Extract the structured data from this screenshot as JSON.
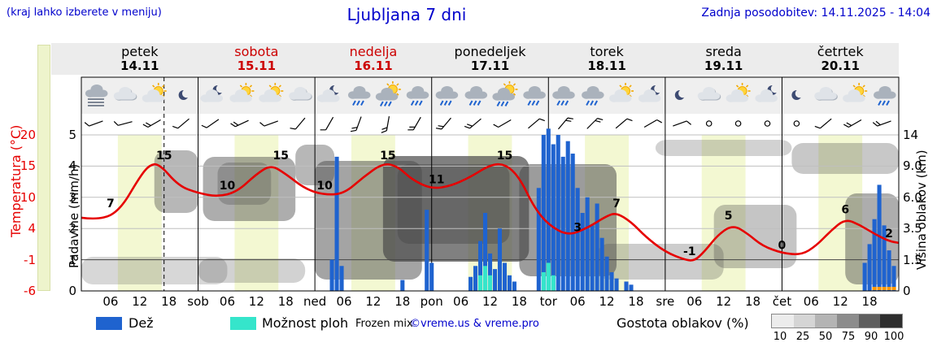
{
  "header": {
    "hint": "(kraj lahko izberete v meniju)",
    "title": "Ljubljana 7 dni",
    "updated": "Zadnja posodobitev: 14.11.2025 - 14:04"
  },
  "axes": {
    "temp_label": "Temperatura (°C)",
    "precip_label": "Padavine (mm/h)",
    "cloud_label": "Višina oblakov (km)",
    "temp_ticks": [
      "20",
      "15",
      "10",
      "4",
      "-1",
      "-6"
    ],
    "precip_ticks": [
      "5",
      "4",
      "3",
      "2",
      "1",
      "0"
    ],
    "cloud_ticks": [
      "14",
      "9.0",
      "6.0",
      "3.5",
      "1.5",
      "0"
    ]
  },
  "days": [
    {
      "name": "petek",
      "date": "14.11",
      "color": "#000000"
    },
    {
      "name": "sobota",
      "date": "15.11",
      "color": "#cc0000"
    },
    {
      "name": "nedelja",
      "date": "16.11",
      "color": "#cc0000"
    },
    {
      "name": "ponedeljek",
      "date": "17.11",
      "color": "#000000"
    },
    {
      "name": "torek",
      "date": "18.11",
      "color": "#000000"
    },
    {
      "name": "sreda",
      "date": "19.11",
      "color": "#000000"
    },
    {
      "name": "četrtek",
      "date": "20.11",
      "color": "#000000"
    }
  ],
  "xticks": [
    {
      "h": 6,
      "t": "06"
    },
    {
      "h": 12,
      "t": "12"
    },
    {
      "h": 18,
      "t": "18"
    },
    {
      "h": 24,
      "t": "sob"
    },
    {
      "h": 30,
      "t": "06"
    },
    {
      "h": 36,
      "t": "12"
    },
    {
      "h": 42,
      "t": "18"
    },
    {
      "h": 48,
      "t": "ned"
    },
    {
      "h": 54,
      "t": "06"
    },
    {
      "h": 60,
      "t": "12"
    },
    {
      "h": 66,
      "t": "18"
    },
    {
      "h": 72,
      "t": "pon"
    },
    {
      "h": 78,
      "t": "06"
    },
    {
      "h": 84,
      "t": "12"
    },
    {
      "h": 90,
      "t": "18"
    },
    {
      "h": 96,
      "t": "tor"
    },
    {
      "h": 102,
      "t": "06"
    },
    {
      "h": 108,
      "t": "12"
    },
    {
      "h": 114,
      "t": "18"
    },
    {
      "h": 120,
      "t": "sre"
    },
    {
      "h": 126,
      "t": "06"
    },
    {
      "h": 132,
      "t": "12"
    },
    {
      "h": 138,
      "t": "18"
    },
    {
      "h": 144,
      "t": "čet"
    },
    {
      "h": 150,
      "t": "06"
    },
    {
      "h": 156,
      "t": "12"
    },
    {
      "h": 162,
      "t": "18"
    }
  ],
  "legend": {
    "rain": "Dež",
    "showers": "Možnost ploh",
    "frozen": "Frozen mix",
    "credit": "©vreme.us & vreme.pro",
    "clouds": "Gostota oblakov (%)",
    "cloud_scale": [
      "10",
      "25",
      "50",
      "75",
      "90",
      "100"
    ],
    "scale_colors": [
      "#ececec",
      "#d5d5d5",
      "#b4b4b4",
      "#8c8c8c",
      "#5e5e5e",
      "#2e2e2e"
    ]
  },
  "chart_data": {
    "type": "meteogram",
    "hours_span": 168,
    "current_time_h": 17,
    "colors": {
      "temp": "#e60000",
      "rain": "#1f63cf",
      "showers": "#35e5cb",
      "frozen": "#ff9800",
      "daylight": "#f3f8d2",
      "cloud": "#4a4a4a",
      "blue_text": "#0000cc"
    },
    "temperature": [
      [
        0,
        6.2
      ],
      [
        4,
        5.8
      ],
      [
        8,
        7.5
      ],
      [
        12,
        13
      ],
      [
        14,
        15
      ],
      [
        16,
        15.2
      ],
      [
        20,
        11.5
      ],
      [
        24,
        10.3
      ],
      [
        28,
        9.7
      ],
      [
        32,
        10.5
      ],
      [
        36,
        13.5
      ],
      [
        39,
        15
      ],
      [
        42,
        13.5
      ],
      [
        46,
        11
      ],
      [
        50,
        10
      ],
      [
        54,
        10.2
      ],
      [
        58,
        13
      ],
      [
        62,
        15.3
      ],
      [
        65,
        14.8
      ],
      [
        68,
        12.5
      ],
      [
        72,
        11
      ],
      [
        76,
        11.5
      ],
      [
        80,
        13
      ],
      [
        84,
        15
      ],
      [
        87,
        15.2
      ],
      [
        90,
        13
      ],
      [
        93,
        8
      ],
      [
        96,
        5
      ],
      [
        100,
        3.2
      ],
      [
        104,
        4.5
      ],
      [
        108,
        6.5
      ],
      [
        110,
        7
      ],
      [
        113,
        5.5
      ],
      [
        116,
        3
      ],
      [
        120,
        0.5
      ],
      [
        124,
        -0.8
      ],
      [
        126,
        -1
      ],
      [
        128,
        0.5
      ],
      [
        131,
        3.5
      ],
      [
        134,
        5
      ],
      [
        137,
        3.5
      ],
      [
        140,
        1.5
      ],
      [
        144,
        0.3
      ],
      [
        148,
        0
      ],
      [
        151,
        1.5
      ],
      [
        154,
        4
      ],
      [
        157,
        6
      ],
      [
        160,
        5
      ],
      [
        163,
        3.5
      ],
      [
        166,
        2.3
      ],
      [
        168,
        2
      ]
    ],
    "temp_labels": [
      [
        6,
        7,
        "7"
      ],
      [
        17,
        15,
        "15"
      ],
      [
        30,
        10,
        "10"
      ],
      [
        41,
        15,
        "15"
      ],
      [
        50,
        10,
        "10"
      ],
      [
        63,
        15,
        "15"
      ],
      [
        73,
        11,
        "11"
      ],
      [
        87,
        15,
        "15"
      ],
      [
        102,
        3,
        "3"
      ],
      [
        110,
        7,
        "7"
      ],
      [
        125,
        -1,
        "-1"
      ],
      [
        133,
        5,
        "5"
      ],
      [
        144,
        0,
        "0"
      ],
      [
        157,
        6,
        "6"
      ],
      [
        166,
        2,
        "2"
      ]
    ],
    "rain": [
      [
        51.5,
        1.0
      ],
      [
        52.5,
        4.3
      ],
      [
        53.5,
        0.8
      ],
      [
        66,
        0.35
      ],
      [
        71,
        2.6
      ],
      [
        72,
        0.9
      ],
      [
        80,
        0.45
      ],
      [
        81,
        0.8
      ],
      [
        82,
        1.6
      ],
      [
        83,
        2.5
      ],
      [
        84,
        1.2
      ],
      [
        85,
        0.7
      ],
      [
        86,
        2.0
      ],
      [
        87,
        0.9
      ],
      [
        88,
        0.5
      ],
      [
        89,
        0.3
      ],
      [
        94,
        3.3
      ],
      [
        95,
        5.0
      ],
      [
        96,
        5.2
      ],
      [
        97,
        4.7
      ],
      [
        98,
        5.0
      ],
      [
        99,
        4.3
      ],
      [
        100,
        4.8
      ],
      [
        101,
        4.4
      ],
      [
        102,
        3.3
      ],
      [
        103,
        2.5
      ],
      [
        104,
        3.0
      ],
      [
        105,
        2.1
      ],
      [
        106,
        2.8
      ],
      [
        107,
        1.7
      ],
      [
        108,
        1.1
      ],
      [
        109,
        0.6
      ],
      [
        110,
        0.4
      ],
      [
        112,
        0.3
      ],
      [
        113,
        0.2
      ],
      [
        161,
        0.9
      ],
      [
        162,
        1.5
      ],
      [
        163,
        2.3
      ],
      [
        164,
        3.4
      ],
      [
        165,
        2.1
      ],
      [
        166,
        1.3
      ],
      [
        167,
        0.8
      ]
    ],
    "showers": [
      [
        82,
        0.5
      ],
      [
        83,
        0.8
      ],
      [
        84,
        0.5
      ],
      [
        95,
        0.6
      ],
      [
        96,
        0.9
      ],
      [
        97,
        0.5
      ]
    ],
    "frozen_hours": [
      163,
      164,
      165,
      166,
      167
    ],
    "daylight": [
      [
        7.5,
        16.5
      ],
      [
        31.5,
        40.5
      ],
      [
        55.5,
        64.5
      ],
      [
        79.5,
        88.5
      ],
      [
        103.5,
        112.5
      ],
      [
        127.5,
        136.5
      ],
      [
        151.5,
        160.5
      ]
    ],
    "clouds": [
      [
        0,
        30,
        316,
        350,
        0.22
      ],
      [
        15,
        24,
        185,
        262,
        0.4
      ],
      [
        25,
        44,
        193,
        272,
        0.45
      ],
      [
        28,
        39,
        200,
        252,
        0.3
      ],
      [
        24,
        46,
        318,
        348,
        0.25
      ],
      [
        44,
        52,
        178,
        228,
        0.4
      ],
      [
        48,
        70,
        198,
        344,
        0.5
      ],
      [
        62,
        92,
        192,
        322,
        0.7
      ],
      [
        65,
        88,
        202,
        300,
        0.45
      ],
      [
        90,
        110,
        202,
        340,
        0.55
      ],
      [
        106,
        132,
        300,
        344,
        0.28
      ],
      [
        118,
        146,
        172,
        192,
        0.25
      ],
      [
        130,
        147,
        252,
        330,
        0.32
      ],
      [
        146,
        168,
        176,
        214,
        0.3
      ],
      [
        157,
        168,
        238,
        350,
        0.45
      ]
    ],
    "icons": [
      "fog",
      "cloud",
      "cloud-sun",
      "moon",
      "cloud-moon",
      "cloud-sun",
      "cloud-sun",
      "cloud",
      "cloud-moon",
      "rain",
      "rain-sun",
      "rain",
      "rain",
      "rain",
      "rain-sun",
      "rain",
      "rain",
      "rain",
      "cloud-sun",
      "cloud-moon",
      "moon",
      "cloud",
      "cloud-sun",
      "cloud-moon",
      "moon",
      "cloud",
      "cloud-sun",
      "rain"
    ],
    "wind": [
      [
        250,
        1
      ],
      [
        255,
        1
      ],
      [
        240,
        2
      ],
      [
        230,
        1
      ],
      [
        235,
        1
      ],
      [
        245,
        2
      ],
      [
        250,
        1
      ],
      [
        220,
        1
      ],
      [
        210,
        1
      ],
      [
        200,
        2
      ],
      [
        190,
        2
      ],
      [
        210,
        2
      ],
      [
        220,
        2
      ],
      [
        230,
        2
      ],
      [
        240,
        1
      ],
      [
        50,
        1
      ],
      [
        40,
        2
      ],
      [
        45,
        2
      ],
      [
        50,
        1
      ],
      [
        60,
        1
      ],
      [
        70,
        1
      ],
      [
        0,
        0
      ],
      [
        0,
        0
      ],
      [
        0,
        0
      ],
      [
        0,
        0
      ],
      [
        230,
        1
      ],
      [
        240,
        2
      ],
      [
        250,
        2
      ]
    ]
  }
}
